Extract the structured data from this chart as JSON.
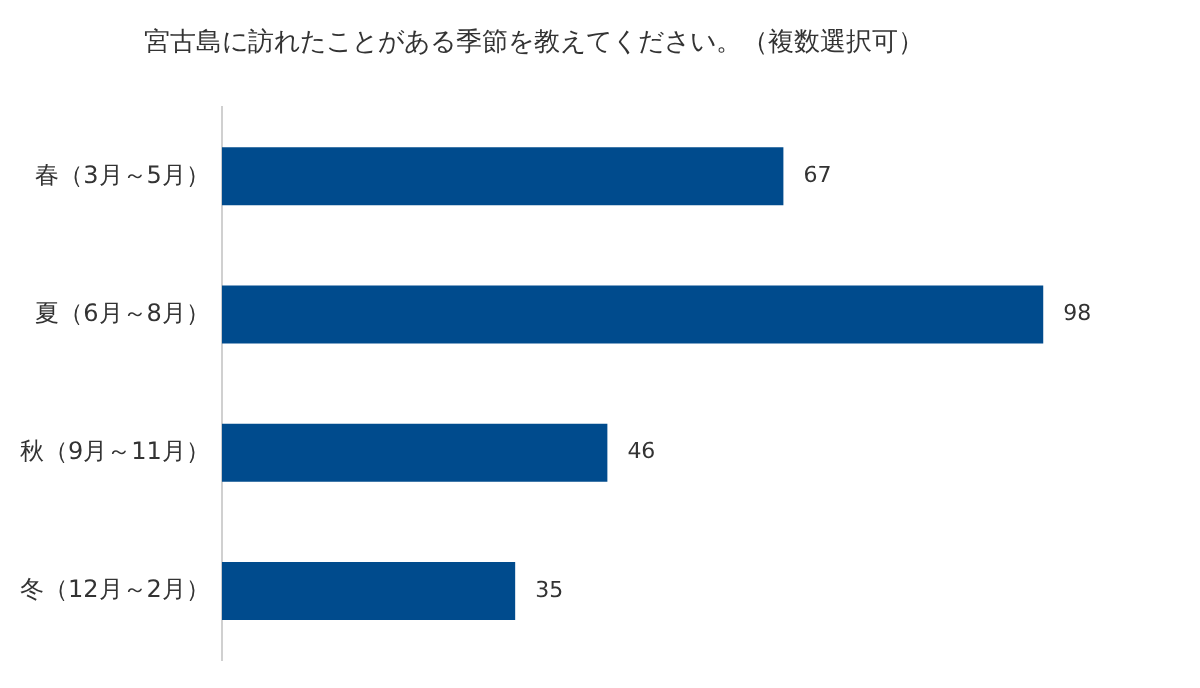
{
  "chart_data": {
    "type": "bar",
    "orientation": "horizontal",
    "title": "宮古島に訪れたことがある季節を教えてください。（複数選択可）",
    "categories": [
      "春（3月～5月）",
      "夏（6月～8月）",
      "秋（9月～11月）",
      "冬（12月～2月）"
    ],
    "values": [
      67,
      98,
      46,
      35
    ],
    "color": "#004b8d",
    "tick_labels": "y",
    "data_labels": true,
    "grid": false,
    "legend": false
  }
}
